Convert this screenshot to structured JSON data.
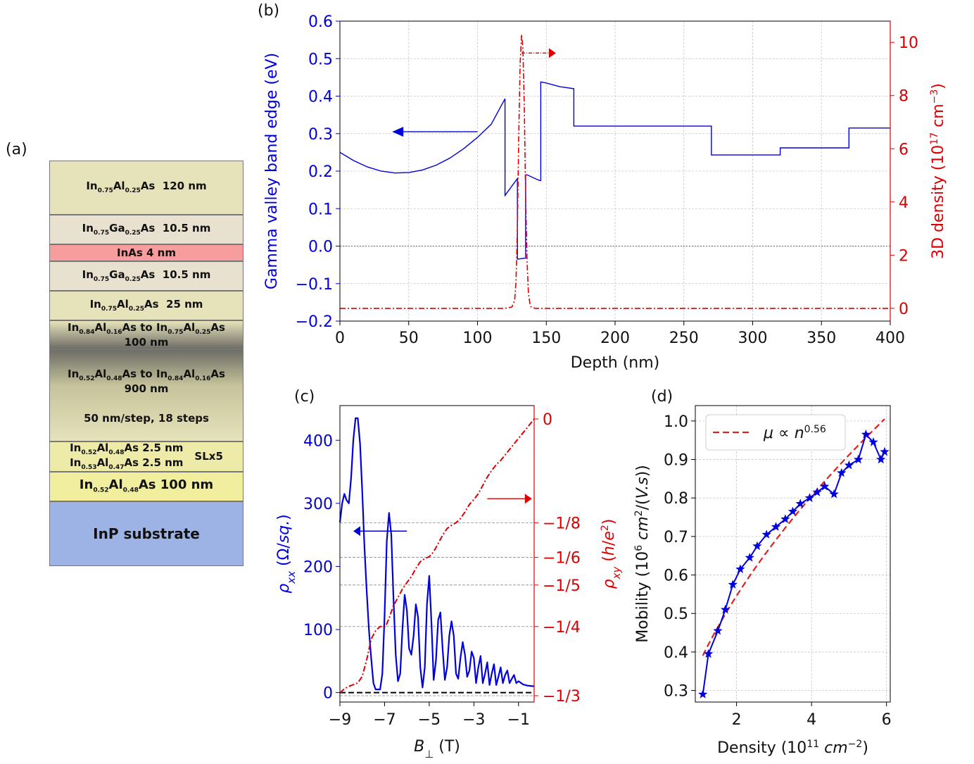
{
  "panel_labels": {
    "a": "(a)",
    "b": "(b)",
    "c": "(c)",
    "d": "(d)"
  },
  "stack": {
    "layers": [
      {
        "text": "In0.75Al0.25As 120 nm",
        "color": "#e6e3bb"
      },
      {
        "text": "In0.75Ga0.25As 10.5 nm",
        "color": "#e9e1cf"
      },
      {
        "text": "InAs 4 nm",
        "color": "#f79d9d"
      },
      {
        "text": "In0.75Ga0.25As 10.5 nm",
        "color": "#e9e1cf"
      },
      {
        "text": "In0.75Al0.25As 25 nm",
        "color": "#e6e3bb"
      },
      {
        "text": "In0.84Al0.16As to In0.75Al0.25As 100 nm",
        "color": "#8f8e7d"
      },
      {
        "text": "In0.52Al0.48As to In0.84Al0.16As 900 nm",
        "color": "#c7c49c"
      },
      {
        "text": "50 nm/step, 18 steps",
        "color": "#e6e3bb"
      },
      {
        "text": "In0.52Al0.48As 2.5 nm In0.53Al0.47As 2.5 nm SLx5",
        "color": "#eeeba8"
      },
      {
        "text": "In0.52Al0.48As 100 nm",
        "color": "#f1ef9d"
      },
      {
        "text": "InP substrate",
        "color": "#9db3e6"
      }
    ]
  },
  "chart_data": [
    {
      "panel": "b",
      "type": "line",
      "xlabel": "Depth (nm)",
      "ylabel": "Gamma valley band edge (eV)",
      "y2label": "3D density (10^17 cm^-3)",
      "xlim": [
        0,
        400
      ],
      "ylim": [
        -0.2,
        0.6
      ],
      "y2lim": [
        -0.48,
        10.8
      ],
      "xticks": [
        0,
        50,
        100,
        150,
        200,
        250,
        300,
        350,
        400
      ],
      "yticks": [
        -0.2,
        -0.1,
        0.0,
        0.1,
        0.2,
        0.3,
        0.4,
        0.5,
        0.6
      ],
      "yticklabels": [
        "−0.2",
        "−0.1",
        "0.0",
        "0.1",
        "0.2",
        "0.3",
        "0.4",
        "0.5",
        "0.6"
      ],
      "y2ticks": [
        0,
        2,
        4,
        6,
        8,
        10
      ],
      "grid": true,
      "colors": {
        "band": "#0000dd",
        "density": "#dd0000"
      },
      "series": [
        {
          "axis": "left",
          "x": [
            0,
            10,
            20,
            30,
            40,
            50,
            60,
            70,
            80,
            90,
            100,
            110,
            120,
            120,
            126,
            128,
            129,
            129,
            135,
            135,
            136,
            145,
            146,
            146,
            150,
            160,
            170,
            170,
            220,
            270,
            270,
            320,
            320,
            370,
            370,
            400
          ],
          "y": [
            0.25,
            0.228,
            0.211,
            0.2,
            0.195,
            0.196,
            0.203,
            0.216,
            0.235,
            0.26,
            0.29,
            0.325,
            0.393,
            0.135,
            0.165,
            0.175,
            0.18,
            -0.035,
            -0.032,
            0.19,
            0.19,
            0.175,
            0.175,
            0.438,
            0.435,
            0.425,
            0.42,
            0.32,
            0.32,
            0.32,
            0.243,
            0.243,
            0.262,
            0.262,
            0.315,
            0.315
          ]
        },
        {
          "axis": "right",
          "x": [
            0,
            120,
            125,
            127,
            128,
            129,
            130,
            131,
            132,
            133,
            134,
            135,
            136,
            137,
            138,
            139,
            142,
            160,
            250,
            400
          ],
          "y": [
            0,
            0,
            0.05,
            0.3,
            1.0,
            3.0,
            6.5,
            9.2,
            10.3,
            9.8,
            7.6,
            4.2,
            1.8,
            0.6,
            0.2,
            0.05,
            0,
            0,
            0,
            0
          ]
        },
        {
          "axis": "left",
          "x": [
            0,
            400
          ],
          "y": [
            0,
            0
          ]
        }
      ]
    },
    {
      "panel": "c",
      "type": "line",
      "xlabel": "B⊥ (T)",
      "ylabel": "ρxx (Ω/sq.)",
      "y2label": "ρxy (h/e²)",
      "xlim": [
        -9,
        -0.3
      ],
      "ylim": [
        -15,
        455
      ],
      "y2lim": [
        -0.34,
        0.0
      ],
      "xticks": [
        -9,
        -7,
        -5,
        -3,
        -1
      ],
      "xticklabels": [
        "−9",
        "−7",
        "−5",
        "−3",
        "−1"
      ],
      "yticks": [
        0,
        100,
        200,
        300,
        400
      ],
      "y2ticks": [
        -0.3333,
        -0.25,
        -0.2,
        -0.1667,
        -0.125,
        0
      ],
      "y2ticklabels": [
        "−1/3",
        "−1/4",
        "−1/5",
        "−1/6",
        "−1/8",
        "0"
      ],
      "grid": false,
      "colors": {
        "rho_xx": "#0000dd",
        "rho_xy": "#dd0000"
      },
      "series": [
        {
          "axis": "left",
          "x": [
            -9.0,
            -8.9,
            -8.8,
            -8.7,
            -8.6,
            -8.5,
            -8.4,
            -8.3,
            -8.2,
            -8.1,
            -8.0,
            -7.9,
            -7.8,
            -7.7,
            -7.6,
            -7.5,
            -7.4,
            -7.3,
            -7.2,
            -7.1,
            -7.0,
            -6.9,
            -6.8,
            -6.7,
            -6.6,
            -6.5,
            -6.4,
            -6.3,
            -6.2,
            -6.1,
            -6.0,
            -5.9,
            -5.8,
            -5.7,
            -5.6,
            -5.5,
            -5.4,
            -5.3,
            -5.2,
            -5.1,
            -5.0,
            -4.9,
            -4.8,
            -4.7,
            -4.6,
            -4.5,
            -4.4,
            -4.3,
            -4.2,
            -4.1,
            -4.0,
            -3.9,
            -3.8,
            -3.7,
            -3.6,
            -3.5,
            -3.4,
            -3.3,
            -3.2,
            -3.1,
            -3.0,
            -2.9,
            -2.8,
            -2.7,
            -2.6,
            -2.5,
            -2.4,
            -2.3,
            -2.2,
            -2.1,
            -2.0,
            -1.9,
            -1.8,
            -1.7,
            -1.6,
            -1.5,
            -1.4,
            -1.3,
            -1.2,
            -1.1,
            -1.0,
            -0.8,
            -0.6,
            -0.3
          ],
          "y": [
            270,
            300,
            315,
            305,
            300,
            340,
            400,
            435,
            435,
            395,
            320,
            230,
            160,
            100,
            55,
            15,
            5,
            5,
            5,
            30,
            120,
            240,
            285,
            250,
            150,
            60,
            18,
            30,
            100,
            155,
            130,
            70,
            60,
            90,
            140,
            120,
            40,
            8,
            40,
            140,
            185,
            110,
            20,
            50,
            115,
            127,
            70,
            20,
            40,
            90,
            113,
            90,
            30,
            22,
            55,
            80,
            60,
            25,
            35,
            65,
            55,
            15,
            40,
            58,
            15,
            30,
            48,
            12,
            30,
            45,
            12,
            25,
            40,
            15,
            28,
            35,
            15,
            22,
            28,
            15,
            18,
            13,
            11,
            10
          ]
        },
        {
          "axis": "right",
          "x": [
            -9.0,
            -8.8,
            -8.6,
            -8.4,
            -8.2,
            -8.0,
            -7.9,
            -7.8,
            -7.6,
            -7.4,
            -7.2,
            -7.0,
            -6.95,
            -6.8,
            -6.6,
            -6.4,
            -6.2,
            -6.0,
            -5.8,
            -5.6,
            -5.4,
            -5.2,
            -5.0,
            -4.8,
            -4.6,
            -4.4,
            -4.2,
            -4.0,
            -3.8,
            -3.6,
            -3.4,
            -3.2,
            -3.0,
            -2.8,
            -2.6,
            -2.4,
            -2.2,
            -2.0,
            -1.8,
            -1.5,
            -1.2,
            -0.9,
            -0.6,
            -0.3
          ],
          "y": [
            -0.33,
            -0.325,
            -0.322,
            -0.32,
            -0.318,
            -0.31,
            -0.3,
            -0.29,
            -0.265,
            -0.255,
            -0.25,
            -0.25,
            -0.25,
            -0.24,
            -0.225,
            -0.215,
            -0.205,
            -0.197,
            -0.19,
            -0.18,
            -0.172,
            -0.168,
            -0.166,
            -0.16,
            -0.15,
            -0.14,
            -0.132,
            -0.128,
            -0.125,
            -0.12,
            -0.112,
            -0.103,
            -0.097,
            -0.09,
            -0.08,
            -0.07,
            -0.062,
            -0.055,
            -0.05,
            -0.04,
            -0.03,
            -0.02,
            -0.01,
            0.0
          ]
        }
      ]
    },
    {
      "panel": "d",
      "type": "scatter",
      "xlabel": "Density (10^11 cm^-2)",
      "ylabel": "Mobility (10^6 cm^2/(V.s))",
      "xlim": [
        0.9,
        6.1
      ],
      "ylim": [
        0.27,
        1.04
      ],
      "xticks": [
        2,
        4,
        6
      ],
      "yticks": [
        0.3,
        0.4,
        0.5,
        0.6,
        0.7,
        0.8,
        0.9,
        1.0
      ],
      "grid": true,
      "legend": {
        "position": "top-left",
        "label": "μ ∝ n^0.56"
      },
      "colors": {
        "data": "#0000dd",
        "fit": "#dd2222"
      },
      "series": [
        {
          "x": [
            1.1,
            1.25,
            1.5,
            1.7,
            1.9,
            2.1,
            2.35,
            2.55,
            2.8,
            3.05,
            3.3,
            3.5,
            3.7,
            3.95,
            4.15,
            4.35,
            4.6,
            4.8,
            5.0,
            5.25,
            5.45,
            5.65,
            5.85,
            5.95
          ],
          "y": [
            0.29,
            0.395,
            0.455,
            0.51,
            0.575,
            0.615,
            0.645,
            0.675,
            0.705,
            0.725,
            0.745,
            0.765,
            0.785,
            0.8,
            0.815,
            0.83,
            0.81,
            0.865,
            0.885,
            0.9,
            0.965,
            0.945,
            0.9,
            0.92
          ]
        },
        {
          "name": "μ ∝ n^0.56",
          "fit_exponent": 0.56,
          "x_range": [
            1.1,
            5.95
          ]
        }
      ]
    }
  ]
}
